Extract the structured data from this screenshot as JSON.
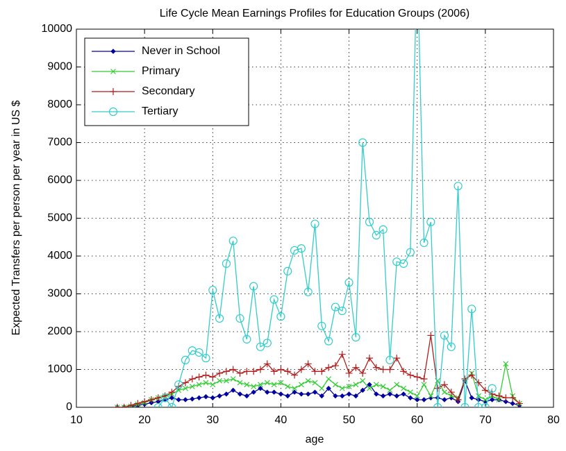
{
  "chart_data": {
    "type": "line",
    "title": "Life Cycle Mean Earnings Profiles for Education Groups (2006)",
    "xlabel": "age",
    "ylabel": "Expected Transfers per person per year in US $",
    "x": [
      16,
      17,
      18,
      19,
      20,
      21,
      22,
      23,
      24,
      25,
      26,
      27,
      28,
      29,
      30,
      31,
      32,
      33,
      34,
      35,
      36,
      37,
      38,
      39,
      40,
      41,
      42,
      43,
      44,
      45,
      46,
      47,
      48,
      49,
      50,
      51,
      52,
      53,
      54,
      55,
      56,
      57,
      58,
      59,
      60,
      61,
      62,
      63,
      64,
      65,
      66,
      67,
      68,
      69,
      70,
      71,
      72,
      73,
      74,
      75
    ],
    "series": [
      {
        "name": "Never in School",
        "color": "#0000a0",
        "marker": "diamond",
        "values": [
          0,
          0,
          20,
          50,
          80,
          120,
          150,
          200,
          250,
          200,
          200,
          220,
          250,
          280,
          250,
          300,
          350,
          450,
          350,
          300,
          400,
          500,
          400,
          400,
          350,
          300,
          400,
          350,
          350,
          400,
          300,
          500,
          300,
          300,
          350,
          300,
          450,
          600,
          350,
          300,
          350,
          300,
          350,
          250,
          200,
          200,
          250,
          250,
          200,
          250,
          150,
          700,
          250,
          200,
          150,
          200,
          200,
          150,
          100,
          50
        ]
      },
      {
        "name": "Primary",
        "color": "#33cc33",
        "marker": "x",
        "values": [
          0,
          0,
          30,
          80,
          120,
          200,
          250,
          300,
          350,
          450,
          500,
          550,
          600,
          650,
          600,
          700,
          700,
          750,
          650,
          600,
          550,
          600,
          650,
          600,
          650,
          550,
          500,
          600,
          700,
          650,
          500,
          750,
          600,
          500,
          550,
          600,
          700,
          500,
          600,
          550,
          450,
          600,
          500,
          400,
          300,
          600,
          300,
          700,
          400,
          300,
          250,
          700,
          900,
          300,
          200,
          300,
          200,
          1150,
          300,
          100
        ]
      },
      {
        "name": "Secondary",
        "color": "#b01c1c",
        "marker": "plus",
        "values": [
          0,
          0,
          50,
          100,
          150,
          200,
          250,
          300,
          400,
          550,
          650,
          750,
          800,
          850,
          800,
          900,
          950,
          1000,
          900,
          950,
          950,
          1000,
          1150,
          950,
          1000,
          950,
          850,
          1000,
          1150,
          950,
          950,
          1050,
          1100,
          1400,
          900,
          1050,
          900,
          1300,
          1050,
          1000,
          1000,
          1300,
          950,
          850,
          800,
          750,
          1900,
          500,
          600,
          400,
          200,
          750,
          850,
          650,
          450,
          350,
          300,
          250,
          250,
          100
        ]
      },
      {
        "name": "Tertiary",
        "color": "#33cccc",
        "marker": "circle",
        "values": [
          null,
          null,
          null,
          null,
          null,
          null,
          0,
          250,
          0,
          600,
          1250,
          1500,
          1450,
          1300,
          3100,
          2350,
          3800,
          4400,
          2350,
          1800,
          3200,
          1600,
          1700,
          2850,
          2400,
          3600,
          4150,
          4200,
          3050,
          4850,
          2150,
          1750,
          2650,
          2550,
          3300,
          1850,
          7000,
          4900,
          4550,
          4700,
          1250,
          3850,
          3800,
          4100,
          12000,
          4350,
          4900,
          0,
          1900,
          1600,
          5850,
          0,
          2600,
          0,
          0,
          500,
          null,
          null,
          null,
          null
        ]
      }
    ],
    "xlim": [
      10,
      80
    ],
    "xticks": [
      10,
      20,
      30,
      40,
      50,
      60,
      70,
      80
    ],
    "ylim": [
      0,
      10000
    ],
    "yticks": [
      0,
      1000,
      2000,
      3000,
      4000,
      5000,
      6000,
      7000,
      8000,
      9000,
      10000
    ],
    "grid": true,
    "legend": "upper left"
  }
}
